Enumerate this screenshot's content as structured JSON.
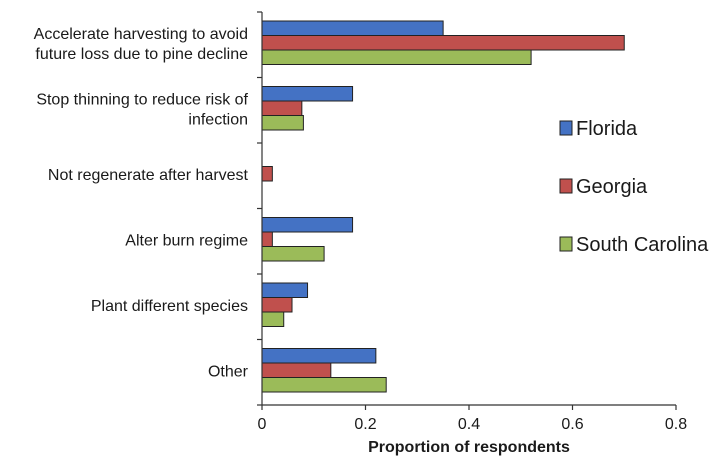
{
  "chart_data": {
    "type": "bar",
    "orientation": "horizontal",
    "categories": [
      [
        "Accelerate harvesting to avoid",
        "future loss due to pine decline"
      ],
      [
        "Stop thinning to reduce risk of",
        "infection"
      ],
      [
        "Not regenerate after harvest"
      ],
      [
        "Alter burn regime"
      ],
      [
        "Plant different species"
      ],
      [
        "Other"
      ]
    ],
    "series": [
      {
        "name": "Florida",
        "color": "#4472C4",
        "values": [
          0.35,
          0.175,
          0.0,
          0.175,
          0.088,
          0.22
        ]
      },
      {
        "name": "Georgia",
        "color": "#C0504D",
        "values": [
          0.7,
          0.077,
          0.02,
          0.02,
          0.058,
          0.133
        ]
      },
      {
        "name": "South Carolina",
        "color": "#9BBB59",
        "values": [
          0.52,
          0.08,
          0.0,
          0.12,
          0.042,
          0.24
        ]
      }
    ],
    "xlabel": "Proportion of respondents",
    "ylabel": "",
    "xlim": [
      0,
      0.8
    ],
    "xticks": [
      "0",
      "0.2",
      "0.4",
      "0.6",
      "0.8"
    ],
    "grid": false,
    "legend_position": "right"
  }
}
